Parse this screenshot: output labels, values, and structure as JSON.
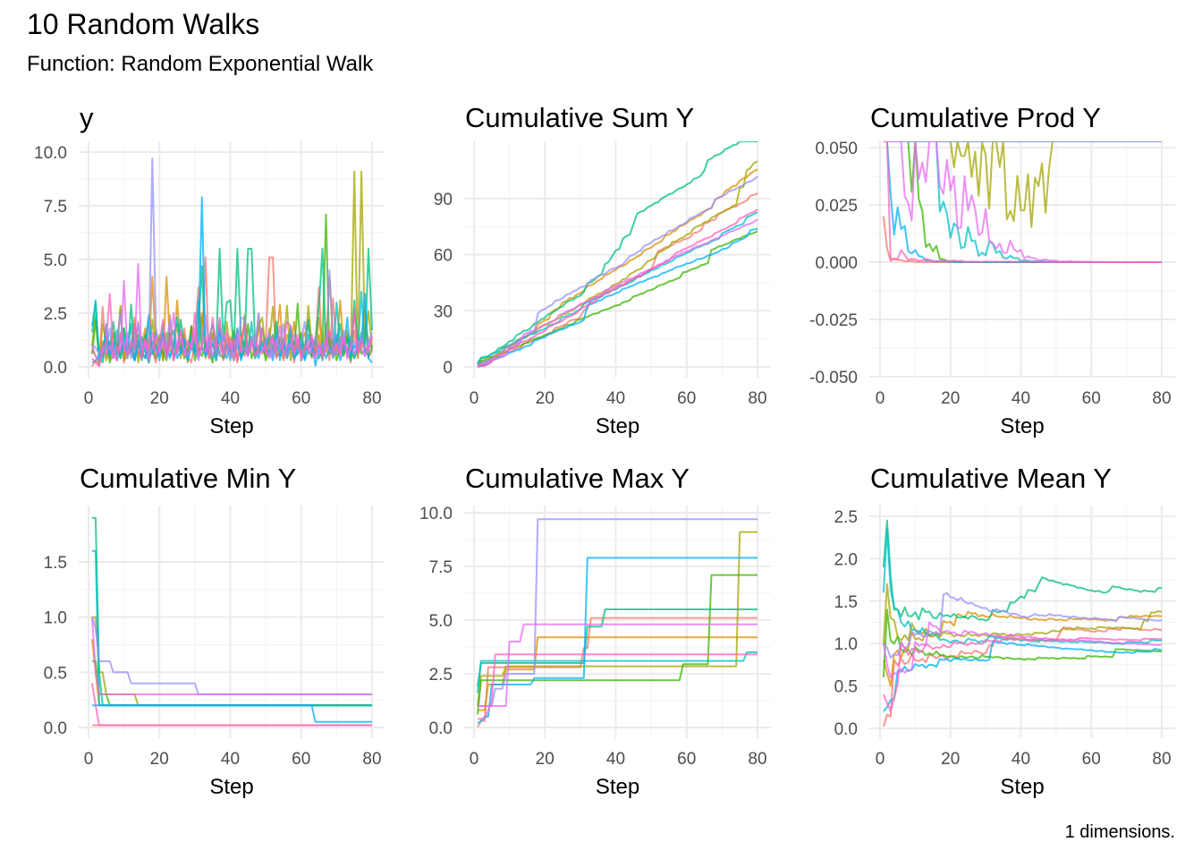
{
  "title": "10 Random Walks",
  "subtitle": "Function: Random Exponential Walk",
  "caption": "1 dimensions.",
  "colors": [
    "#F8766D",
    "#D89000",
    "#A3A500",
    "#39B600",
    "#00BF7D",
    "#00BFC4",
    "#00B0F6",
    "#9590FF",
    "#E76BF3",
    "#FF62BC"
  ],
  "walks": {
    "x_range": [
      1,
      80
    ],
    "series": [
      {
        "values": [
          0.02,
          0.3,
          0.1,
          2.8,
          0.5,
          1.2,
          0.4,
          0.9,
          1.6,
          0.2,
          0.7,
          1.1,
          0.3,
          2.1,
          0.6,
          0.4,
          1.3,
          0.8,
          0.2,
          1.5,
          0.9,
          0.6,
          2.4,
          0.3,
          1.0,
          0.7,
          1.8,
          0.5,
          0.2,
          1.2,
          3.7,
          0.8,
          5.1,
          0.4,
          1.1,
          0.6,
          1.9,
          0.3,
          0.7,
          1.4,
          0.9,
          0.2,
          1.6,
          0.5,
          0.8,
          1.2,
          0.4,
          2.0,
          0.6,
          1.0,
          5.1,
          5.1,
          0.7,
          1.3,
          0.3,
          0.9,
          1.5,
          0.2,
          1.1,
          0.6,
          0.8,
          2.2,
          0.4,
          1.0,
          3.7,
          0.5,
          1.2,
          0.3,
          3.2,
          0.7,
          1.4,
          0.6,
          0.9,
          0.2,
          1.7,
          0.5,
          1.1,
          2.6,
          0.4,
          0.8
        ]
      },
      {
        "values": [
          0.8,
          0.5,
          0.2,
          2.0,
          1.1,
          0.4,
          1.6,
          0.9,
          2.7,
          0.3,
          1.2,
          0.7,
          2.3,
          0.5,
          1.0,
          1.8,
          0.6,
          4.2,
          0.9,
          1.4,
          0.3,
          4.2,
          1.1,
          0.6,
          3.1,
          0.8,
          1.5,
          0.2,
          1.9,
          0.7,
          1.2,
          2.5,
          0.4,
          1.0,
          1.6,
          0.8,
          2.2,
          0.5,
          1.3,
          0.9,
          1.7,
          0.3,
          1.1,
          2.0,
          0.6,
          1.4,
          0.8,
          2.4,
          1.0,
          0.5,
          1.8,
          0.7,
          1.2,
          2.9,
          0.4,
          1.5,
          0.9,
          2.1,
          0.6,
          1.1,
          1.6,
          0.8,
          1.3,
          0.5,
          2.3,
          1.0,
          0.7,
          4.2,
          1.2,
          0.6,
          3.1,
          0.9,
          1.5,
          0.4,
          2.6,
          1.1,
          0.8,
          1.9,
          1.3,
          0.9
        ]
      },
      {
        "values": [
          1.0,
          2.4,
          0.5,
          1.2,
          0.3,
          0.8,
          1.5,
          0.6,
          2.85,
          0.4,
          1.1,
          0.7,
          1.9,
          0.2,
          0.9,
          1.4,
          0.5,
          2.2,
          0.8,
          1.2,
          0.3,
          1.6,
          0.7,
          1.0,
          2.0,
          0.4,
          1.3,
          0.6,
          1.8,
          0.9,
          0.5,
          2.3,
          1.1,
          0.7,
          1.5,
          0.3,
          1.2,
          0.8,
          2.1,
          0.6,
          1.0,
          1.7,
          0.4,
          2.4,
          0.9,
          1.3,
          0.5,
          1.9,
          2.3,
          0.7,
          1.1,
          2.8,
          0.6,
          1.4,
          0.9,
          2.85,
          0.3,
          1.2,
          0.8,
          1.6,
          0.5,
          2.85,
          1.0,
          0.7,
          1.5,
          0.4,
          2.0,
          0.9,
          1.3,
          0.6,
          1.1,
          0.8,
          1.7,
          0.5,
          9.1,
          0.4,
          9.1,
          1.2,
          2.6,
          0.9
        ]
      },
      {
        "values": [
          0.6,
          2.2,
          0.3,
          0.9,
          1.4,
          0.2,
          0.7,
          1.1,
          0.4,
          1.8,
          0.5,
          0.8,
          0.3,
          1.2,
          0.6,
          1.5,
          0.2,
          0.9,
          0.4,
          1.0,
          0.7,
          0.3,
          1.6,
          0.5,
          0.8,
          1.2,
          0.4,
          0.6,
          1.9,
          0.3,
          0.9,
          0.5,
          1.1,
          0.7,
          0.2,
          1.3,
          0.6,
          0.4,
          1.0,
          0.8,
          0.3,
          1.4,
          0.5,
          0.7,
          2.0,
          0.4,
          0.9,
          0.6,
          1.2,
          0.3,
          0.8,
          1.5,
          0.5,
          0.7,
          1.1,
          0.4,
          0.9,
          0.6,
          2.95,
          0.3,
          1.0,
          0.7,
          0.5,
          1.3,
          0.4,
          0.8,
          7.1,
          0.6,
          1.2,
          0.3,
          0.9,
          0.5,
          1.4,
          0.7,
          0.4,
          1.1,
          0.6,
          0.8,
          0.5,
          0.9
        ]
      },
      {
        "values": [
          1.9,
          3.0,
          0.5,
          0.2,
          1.4,
          0.9,
          2.1,
          0.6,
          1.3,
          1.8,
          0.4,
          2.9,
          0.8,
          1.5,
          0.3,
          1.1,
          2.4,
          0.7,
          1.6,
          0.9,
          2.0,
          0.5,
          1.2,
          1.7,
          0.6,
          2.2,
          1.0,
          0.4,
          1.4,
          0.8,
          1.9,
          4.7,
          0.6,
          1.3,
          2.0,
          0.9,
          5.5,
          1.2,
          3.0,
          3.1,
          0.7,
          5.5,
          1.5,
          0.9,
          5.5,
          5.5,
          1.1,
          0.6,
          1.8,
          0.8,
          1.4,
          0.5,
          2.1,
          0.9,
          1.3,
          0.4,
          1.7,
          1.0,
          0.6,
          1.5,
          0.8,
          2.2,
          0.5,
          1.2,
          2.8,
          5.5,
          0.9,
          1.6,
          0.4,
          1.1,
          2.0,
          0.7,
          1.3,
          0.3,
          3.1,
          0.9,
          1.6,
          0.8,
          5.5,
          1.7
        ]
      },
      {
        "values": [
          1.6,
          3.1,
          0.2,
          0.8,
          1.3,
          0.5,
          0.9,
          1.7,
          0.4,
          1.1,
          0.6,
          2.0,
          0.3,
          0.9,
          1.4,
          0.7,
          0.2,
          1.2,
          0.8,
          0.5,
          1.6,
          0.9,
          0.4,
          1.1,
          2.3,
          0.6,
          1.0,
          0.3,
          1.5,
          0.7,
          3.1,
          0.9,
          0.5,
          1.2,
          0.4,
          0.8,
          1.8,
          0.6,
          1.1,
          0.3,
          1.4,
          0.9,
          0.5,
          1.2,
          0.7,
          2.1,
          0.4,
          1.0,
          0.8,
          1.3,
          0.5,
          0.9,
          1.6,
          0.3,
          1.1,
          0.7,
          1.9,
          0.5,
          0.8,
          1.2,
          0.4,
          1.5,
          0.9,
          0.6,
          1.0,
          0.3,
          1.3,
          0.8,
          0.5,
          3.0,
          0.9,
          1.1,
          0.6,
          1.4,
          0.4,
          0.8,
          3.5,
          0.7,
          1.0,
          0.9
        ]
      },
      {
        "values": [
          0.2,
          0.3,
          0.5,
          0.4,
          2.0,
          0.6,
          1.1,
          0.3,
          0.8,
          1.4,
          0.5,
          0.9,
          0.3,
          1.2,
          0.7,
          0.4,
          2.3,
          0.6,
          1.0,
          0.3,
          1.5,
          0.8,
          0.5,
          1.1,
          0.4,
          0.7,
          1.3,
          0.3,
          0.9,
          0.6,
          1.2,
          7.9,
          0.5,
          0.8,
          1.1,
          0.3,
          1.6,
          0.7,
          0.4,
          1.0,
          0.6,
          1.8,
          0.3,
          0.9,
          0.5,
          1.2,
          0.7,
          0.4,
          1.1,
          0.6,
          0.8,
          0.3,
          1.4,
          0.5,
          0.9,
          0.7,
          1.2,
          0.4,
          0.6,
          1.0,
          0.3,
          0.8,
          1.3,
          0.05,
          0.7,
          1.1,
          0.4,
          0.9,
          0.6,
          1.5,
          0.3,
          0.8,
          2.3,
          0.5,
          1.0,
          0.7,
          1.2,
          3.4,
          0.4,
          0.2
        ]
      },
      {
        "values": [
          1.0,
          0.9,
          0.6,
          1.0,
          0.8,
          1.8,
          0.5,
          1.2,
          2.5,
          0.7,
          1.6,
          0.4,
          1.1,
          2.0,
          0.8,
          1.3,
          0.5,
          9.7,
          1.9,
          0.6,
          1.4,
          0.9,
          2.2,
          0.4,
          1.0,
          1.7,
          0.6,
          1.2,
          0.8,
          1.5,
          0.3,
          1.1,
          2.4,
          0.7,
          1.3,
          0.9,
          0.5,
          1.6,
          1.0,
          0.4,
          1.2,
          0.8,
          2.3,
          2.2,
          0.6,
          1.4,
          0.9,
          2.5,
          0.7,
          1.1,
          1.6,
          0.5,
          1.3,
          0.8,
          2.0,
          0.4,
          1.0,
          1.5,
          0.7,
          1.2,
          2.1,
          0.6,
          0.9,
          1.4,
          0.5,
          1.1,
          0.8,
          4.5,
          1.3,
          0.6,
          1.0,
          1.7,
          0.4,
          0.9,
          1.2,
          0.7,
          1.5,
          0.5,
          1.1,
          1.6
        ]
      },
      {
        "values": [
          1.0,
          0.5,
          0.3,
          0.8,
          0.6,
          1.0,
          0.4,
          0.9,
          0.7,
          4.0,
          0.5,
          1.2,
          0.8,
          4.8,
          0.6,
          1.1,
          0.3,
          0.9,
          1.5,
          0.7,
          1.2,
          0.4,
          1.0,
          2.5,
          0.6,
          1.3,
          0.8,
          0.5,
          1.1,
          1.8,
          0.4,
          0.9,
          0.7,
          1.4,
          0.5,
          1.0,
          2.3,
          0.6,
          0.8,
          1.2,
          0.3,
          1.6,
          0.7,
          0.9,
          0.5,
          1.1,
          1.4,
          0.6,
          0.8,
          1.0,
          0.4,
          1.3,
          0.7,
          1.9,
          0.5,
          0.9,
          1.1,
          0.6,
          1.5,
          0.3,
          0.8,
          1.2,
          0.7,
          0.4,
          1.0,
          0.6,
          1.3,
          0.8,
          0.5,
          1.1,
          0.7,
          1.4,
          0.4,
          0.9,
          0.6,
          1.2,
          0.8,
          0.5,
          1.0,
          1.4
        ]
      },
      {
        "values": [
          0.4,
          0.2,
          0.02,
          0.8,
          1.2,
          3.4,
          0.6,
          0.3,
          1.5,
          0.9,
          0.5,
          1.1,
          2.0,
          0.7,
          0.4,
          1.3,
          0.8,
          1.6,
          0.5,
          1.0,
          2.2,
          0.6,
          1.4,
          0.3,
          0.9,
          1.7,
          0.5,
          1.2,
          0.8,
          2.5,
          0.6,
          1.0,
          1.4,
          0.4,
          2.3,
          0.9,
          1.1,
          0.5,
          1.6,
          0.8,
          1.3,
          0.3,
          1.0,
          2.0,
          0.7,
          1.2,
          0.5,
          0.9,
          1.8,
          0.6,
          1.1,
          1.4,
          0.4,
          0.8,
          1.0,
          2.1,
          1.9,
          0.7,
          1.3,
          0.5,
          1.0,
          0.8,
          1.5,
          0.6,
          1.2,
          0.4,
          0.9,
          1.7,
          0.7,
          1.1,
          0.5,
          1.3,
          0.8,
          1.0,
          2.6,
          0.6,
          1.2,
          0.9,
          0.7,
          1.4
        ]
      }
    ]
  },
  "chart_data": [
    {
      "type": "line",
      "title": "y",
      "transform": "identity",
      "xlabel": "Step",
      "x_ticks": [
        "0",
        "20",
        "40",
        "60",
        "80"
      ],
      "y_ticks": [
        "0.0",
        "2.5",
        "5.0",
        "7.5",
        "10.0"
      ],
      "y_tick_values": [
        0,
        2.5,
        5,
        7.5,
        10
      ],
      "grid": true
    },
    {
      "type": "line",
      "title": "Cumulative Sum Y",
      "transform": "cumsum",
      "xlabel": "Step",
      "x_ticks": [
        "0",
        "20",
        "40",
        "60",
        "80"
      ],
      "y_ticks": [
        "0",
        "30",
        "60",
        "90"
      ],
      "y_tick_values": [
        0,
        30,
        60,
        90
      ],
      "grid": true
    },
    {
      "type": "line",
      "title": "Cumulative Prod Y",
      "transform": "cumprod",
      "xlabel": "Step",
      "x_ticks": [
        "0",
        "20",
        "40",
        "60",
        "80"
      ],
      "y_ticks": [
        "-0.050",
        "-0.025",
        "0.000",
        "0.025",
        "0.050"
      ],
      "y_tick_values": [
        -0.05,
        -0.025,
        0,
        0.025,
        0.05
      ],
      "grid": true
    },
    {
      "type": "line",
      "title": "Cumulative Min Y",
      "transform": "cummin",
      "xlabel": "Step",
      "x_ticks": [
        "0",
        "20",
        "40",
        "60",
        "80"
      ],
      "y_ticks": [
        "0.0",
        "0.5",
        "1.0",
        "1.5"
      ],
      "y_tick_values": [
        0,
        0.5,
        1,
        1.5
      ],
      "grid": true
    },
    {
      "type": "line",
      "title": "Cumulative Max Y",
      "transform": "cummax",
      "xlabel": "Step",
      "x_ticks": [
        "0",
        "20",
        "40",
        "60",
        "80"
      ],
      "y_ticks": [
        "0.0",
        "2.5",
        "5.0",
        "7.5",
        "10.0"
      ],
      "y_tick_values": [
        0,
        2.5,
        5,
        7.5,
        10
      ],
      "grid": true
    },
    {
      "type": "line",
      "title": "Cumulative Mean Y",
      "transform": "cummean",
      "xlabel": "Step",
      "x_ticks": [
        "0",
        "20",
        "40",
        "60",
        "80"
      ],
      "y_ticks": [
        "0.0",
        "0.5",
        "1.0",
        "1.5",
        "2.0",
        "2.5"
      ],
      "y_tick_values": [
        0,
        0.5,
        1,
        1.5,
        2,
        2.5
      ],
      "grid": true
    }
  ]
}
